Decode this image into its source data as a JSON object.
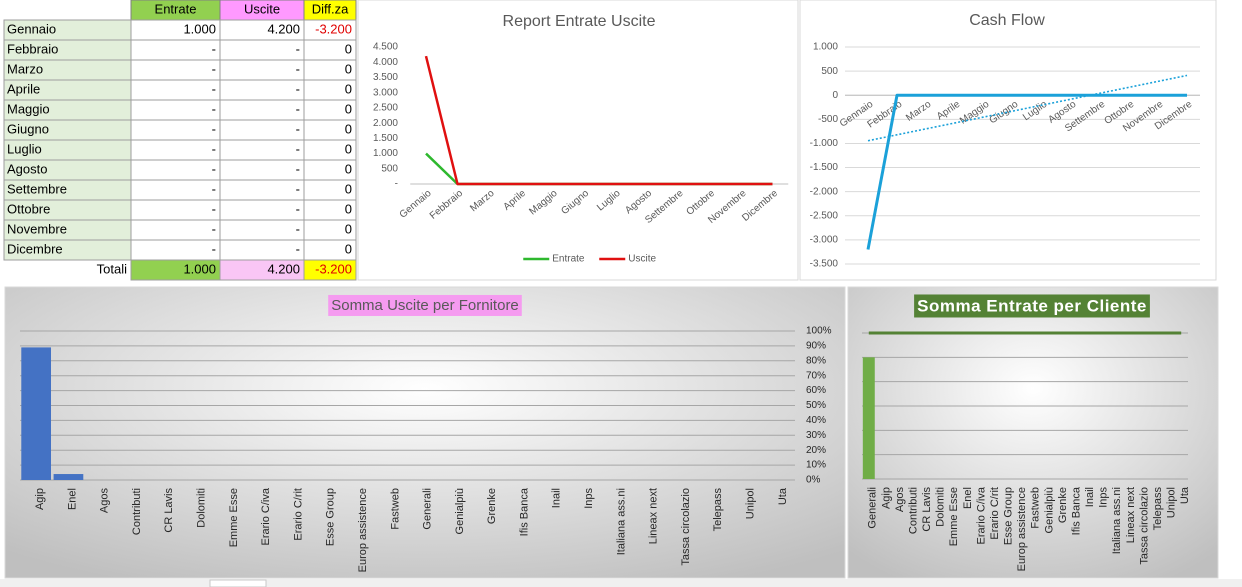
{
  "table": {
    "header": [
      "Entrate",
      "Uscite",
      "Diff.za"
    ],
    "rows": [
      [
        "Gennaio",
        "1.000",
        "4.200",
        "-3.200"
      ],
      [
        "Febbraio",
        "-",
        "-",
        "0"
      ],
      [
        "Marzo",
        "-",
        "-",
        "0"
      ],
      [
        "Aprile",
        "-",
        "-",
        "0"
      ],
      [
        "Maggio",
        "-",
        "-",
        "0"
      ],
      [
        "Giugno",
        "-",
        "-",
        "0"
      ],
      [
        "Luglio",
        "-",
        "-",
        "0"
      ],
      [
        "Agosto",
        "-",
        "-",
        "0"
      ],
      [
        "Settembre",
        "-",
        "-",
        "0"
      ],
      [
        "Ottobre",
        "-",
        "-",
        "0"
      ],
      [
        "Novembre",
        "-",
        "-",
        "0"
      ],
      [
        "Dicembre",
        "-",
        "-",
        "0"
      ]
    ],
    "totals": [
      "Totali",
      "1.000",
      "4.200",
      "-3.200"
    ]
  },
  "chart_data": [
    {
      "type": "line",
      "title": "Report Entrate Uscite",
      "categories": [
        "Gennaio",
        "Febbraio",
        "Marzo",
        "Aprile",
        "Maggio",
        "Giugno",
        "Luglio",
        "Agosto",
        "Settembre",
        "Ottobre",
        "Novembre",
        "Dicembre"
      ],
      "series": [
        {
          "name": "Entrate",
          "color": "#2eb82e",
          "values": [
            1000,
            0,
            0,
            0,
            0,
            0,
            0,
            0,
            0,
            0,
            0,
            0
          ]
        },
        {
          "name": "Uscite",
          "color": "#e01010",
          "values": [
            4200,
            0,
            0,
            0,
            0,
            0,
            0,
            0,
            0,
            0,
            0,
            0
          ]
        }
      ],
      "ylim": [
        0,
        4500
      ],
      "yticks": [
        {
          "value": 0,
          "label": "-"
        },
        500,
        {
          "value": 1000,
          "label": "1.000"
        },
        {
          "value": 1500,
          "label": "1.500"
        },
        {
          "value": 2000,
          "label": "2.000"
        },
        {
          "value": 2500,
          "label": "2.500"
        },
        {
          "value": 3000,
          "label": "3.000"
        },
        {
          "value": 3500,
          "label": "3.500"
        },
        {
          "value": 4000,
          "label": "4.000"
        },
        {
          "value": 4500,
          "label": "4.500"
        }
      ],
      "grid": false,
      "legend": "bottom"
    },
    {
      "type": "line",
      "title": "Cash Flow",
      "categories": [
        "Gennaio",
        "Febbraio",
        "Marzo",
        "Aprile",
        "Maggio",
        "Giugno",
        "Luglio",
        "Agosto",
        "Settembre",
        "Ottobre",
        "Novembre",
        "Dicembre"
      ],
      "series": [
        {
          "color": "#1ba1d9",
          "values": [
            -3200,
            0,
            0,
            0,
            0,
            0,
            0,
            0,
            0,
            0,
            0,
            0
          ]
        }
      ],
      "ylim": [
        -3500,
        1000
      ],
      "yticks": [
        {
          "value": 1000,
          "label": "1.000"
        },
        500,
        0,
        -500,
        {
          "value": -1000,
          "label": "-1.000"
        },
        {
          "value": -1500,
          "label": "-1.500"
        },
        {
          "value": -2000,
          "label": "-2.000"
        },
        {
          "value": -2500,
          "label": "-2.500"
        },
        {
          "value": -3000,
          "label": "-3.000"
        },
        {
          "value": -3500,
          "label": "-3.500"
        }
      ],
      "grid": true,
      "trendline": "linear"
    },
    {
      "type": "bar",
      "title": "Somma Uscite per Fornitore",
      "title_background": "#f59bf0",
      "title_color": "#595959",
      "categories": [
        "Agip",
        "Enel",
        "Agos",
        "Contributi",
        "CR Lavis",
        "Dolomiti",
        "Emme Esse",
        "Erario C/iva",
        "Erario C/rit",
        "Esse Group",
        "Europ assistence",
        "Fastweb",
        "Generali",
        "Genialpiù",
        "Grenke",
        "Ifis Banca",
        "Inail",
        "Inps",
        "Italiana ass.ni",
        "Lineax next",
        "Tassa circolazio",
        "Telepass",
        "Unipol",
        "Uta"
      ],
      "series": [
        {
          "color": "#4472c4",
          "values": [
            89,
            4,
            0,
            0,
            0,
            0,
            0,
            0,
            0,
            0,
            0,
            0,
            0,
            0,
            0,
            0,
            0,
            0,
            0,
            0,
            0,
            0,
            0,
            0
          ]
        }
      ],
      "ylim": [
        0,
        100
      ],
      "yticks": [
        {
          "value": 0,
          "label": "0%"
        },
        {
          "value": 10,
          "label": "10%"
        },
        {
          "value": 20,
          "label": "20%"
        },
        {
          "value": 30,
          "label": "30%"
        },
        {
          "value": 40,
          "label": "40%"
        },
        {
          "value": 50,
          "label": "50%"
        },
        {
          "value": 60,
          "label": "60%"
        },
        {
          "value": 70,
          "label": "70%"
        },
        {
          "value": 80,
          "label": "80%"
        },
        {
          "value": 90,
          "label": "90%"
        },
        {
          "value": 100,
          "label": "100%"
        }
      ],
      "grid": true,
      "y_axis_side": "right"
    },
    {
      "type": "bar",
      "title": "Somma Entrate per Cliente",
      "title_background": "#548235",
      "title_color": "#ffffff",
      "categories": [
        "Generali",
        "Agip",
        "Agos",
        "Contributi",
        "CR Lavis",
        "Dolomiti",
        "Emme Esse",
        "Enel",
        "Erario C/iva",
        "Erario C/rit",
        "Esse Group",
        "Europ assistence",
        "Fastweb",
        "Genialpiù",
        "Grenke",
        "Ifis Banca",
        "Inail",
        "Inps",
        "Italiana ass.ni",
        "Lineax next",
        "Tassa circolazio",
        "Telepass",
        "Unipol",
        "Uta"
      ],
      "series": [
        {
          "color": "#70ad47",
          "values": [
            1000,
            0,
            0,
            0,
            0,
            0,
            0,
            0,
            0,
            0,
            0,
            0,
            0,
            0,
            0,
            0,
            0,
            0,
            0,
            0,
            0,
            0,
            0,
            0
          ]
        },
        {
          "kind": "line",
          "axis": "y2",
          "color": "#548235",
          "values": [
            100,
            100,
            100,
            100,
            100,
            100,
            100,
            100,
            100,
            100,
            100,
            100,
            100,
            100,
            100,
            100,
            100,
            100,
            100,
            100,
            100,
            100,
            100,
            100
          ]
        }
      ],
      "ylim": [
        0,
        1200
      ],
      "yticks": [
        0,
        200,
        400,
        600,
        800,
        1000,
        1200
      ],
      "tick_labels": false,
      "y2lim": [
        0,
        100
      ],
      "grid": true
    }
  ]
}
